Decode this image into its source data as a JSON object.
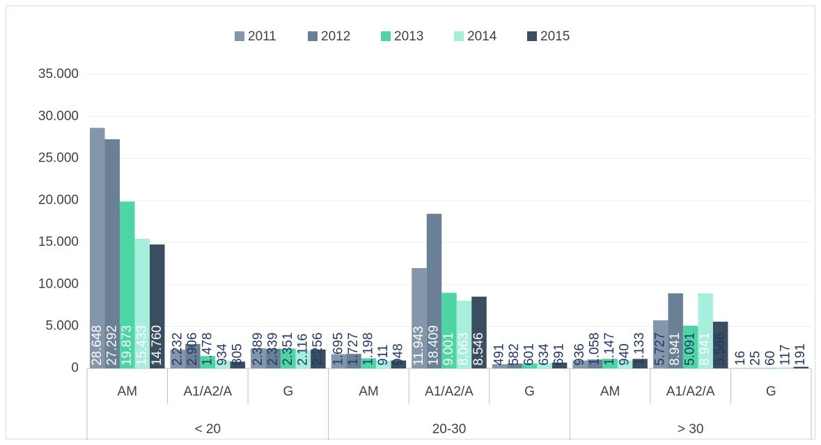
{
  "chart_data": {
    "type": "bar",
    "categories": [
      "AM",
      "A1/A2/A",
      "G",
      "AM",
      "A1/A2/A",
      "G",
      "AM",
      "A1/A2/A",
      "G"
    ],
    "category_groups": [
      "< 20",
      "20-30",
      "> 30"
    ],
    "series": [
      {
        "name": "2011",
        "color": "#8496a9",
        "values": [
          28648,
          2232,
          2389,
          1695,
          11943,
          491,
          936,
          5727,
          16
        ],
        "value_labels": [
          "28.648",
          "2.232",
          "2.389",
          "1.695",
          "11.943",
          "491",
          "936",
          "5.727",
          "16"
        ]
      },
      {
        "name": "2012",
        "color": "#6a8096",
        "values": [
          27292,
          2906,
          2339,
          1727,
          18409,
          582,
          1058,
          8941,
          25
        ],
        "value_labels": [
          "27.292",
          "2.906",
          "2.339",
          "1.727",
          "18.409",
          "582",
          "1.058",
          "8.941",
          "25"
        ]
      },
      {
        "name": "2013",
        "color": "#4dd6a4",
        "values": [
          19873,
          1478,
          2351,
          1198,
          9001,
          601,
          1147,
          5091,
          60
        ],
        "value_labels": [
          "19.873",
          "1.478",
          "2.351",
          "1.198",
          "9.001",
          "601",
          "1.147",
          "5.091",
          "60"
        ]
      },
      {
        "name": "2014",
        "color": "#a8eedc",
        "values": [
          15433,
          934,
          2116,
          911,
          8063,
          634,
          940,
          8941,
          117
        ],
        "value_labels": [
          "15.433",
          "934",
          "2.116",
          "911",
          "8.063",
          "634",
          "940",
          "8.941",
          "117"
        ]
      },
      {
        "name": "2015",
        "color": "#3b4d60",
        "values": [
          14760,
          805,
          2256,
          948,
          8546,
          691,
          1133,
          5566,
          191
        ],
        "value_labels": [
          "14.760",
          "805",
          "2.256",
          "948",
          "8.546",
          "691",
          "1.133",
          "5.566",
          "191"
        ]
      }
    ],
    "ylim": [
      0,
      35000
    ],
    "yticks": [
      0,
      {
        "value": 5000,
        "label": "5.000"
      },
      {
        "value": 10000,
        "label": "10.000"
      },
      {
        "value": 15000,
        "label": "15.000"
      },
      {
        "value": 20000,
        "label": "20.000"
      },
      {
        "value": 25000,
        "label": "25.000"
      },
      {
        "value": 30000,
        "label": "30.000"
      },
      {
        "value": 35000,
        "label": "35.000"
      }
    ],
    "grid": true,
    "legend": "top"
  }
}
